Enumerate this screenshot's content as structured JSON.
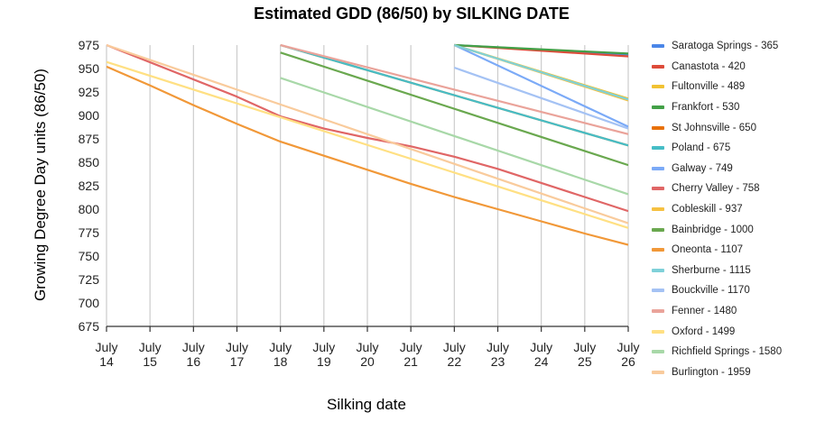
{
  "chart_data": {
    "type": "line",
    "title": "Estimated GDD (86/50) by SILKING DATE",
    "xlabel": "Silking date",
    "ylabel": "Growing Degree Day units (86/50)",
    "ylim": [
      675,
      975
    ],
    "yticks": [
      975,
      950,
      925,
      900,
      875,
      850,
      825,
      800,
      775,
      750,
      725,
      700,
      675
    ],
    "xlim": [
      14,
      26
    ],
    "x_tick_labels": [
      [
        "July",
        "14"
      ],
      [
        "July",
        "15"
      ],
      [
        "July",
        "16"
      ],
      [
        "July",
        "17"
      ],
      [
        "July",
        "18"
      ],
      [
        "July",
        "19"
      ],
      [
        "July",
        "20"
      ],
      [
        "July",
        "21"
      ],
      [
        "July",
        "22"
      ],
      [
        "July",
        "23"
      ],
      [
        "July",
        "24"
      ],
      [
        "July",
        "25"
      ],
      [
        "July",
        "26"
      ]
    ],
    "legend_position": "right",
    "series": [
      {
        "name": "Saratoga Springs - 365",
        "color": "#4a86e8",
        "points": [
          [
            22,
            975
          ],
          [
            26,
            965
          ]
        ]
      },
      {
        "name": "Canastota - 420",
        "color": "#dd4b39",
        "points": [
          [
            22,
            975
          ],
          [
            26,
            963
          ]
        ]
      },
      {
        "name": "Fultonville - 489",
        "color": "#f1c232",
        "points": [
          [
            22,
            975
          ],
          [
            26,
            918
          ]
        ]
      },
      {
        "name": "Frankfort - 530",
        "color": "#43a047",
        "points": [
          [
            22,
            975
          ],
          [
            26,
            966
          ]
        ]
      },
      {
        "name": "St Johnsville - 650",
        "color": "#e8710a",
        "points": [
          [
            18,
            975
          ],
          [
            26,
            868
          ]
        ]
      },
      {
        "name": "Poland - 675",
        "color": "#46bdc6",
        "points": [
          [
            18,
            975
          ],
          [
            26,
            868
          ]
        ]
      },
      {
        "name": "Galway - 749",
        "color": "#7baaf7",
        "points": [
          [
            22,
            975
          ],
          [
            26,
            888
          ]
        ]
      },
      {
        "name": "Cherry Valley - 758",
        "color": "#e06666",
        "points": [
          [
            14,
            975
          ],
          [
            17,
            920
          ],
          [
            18,
            899
          ],
          [
            19,
            886
          ],
          [
            20,
            876
          ],
          [
            21,
            867
          ],
          [
            22,
            856
          ],
          [
            23,
            843
          ],
          [
            24,
            828
          ],
          [
            25,
            813
          ],
          [
            26,
            798
          ]
        ]
      },
      {
        "name": "Cobleskill - 937",
        "color": "#f6c142",
        "points": [
          [
            22,
            975
          ],
          [
            26,
            916
          ]
        ]
      },
      {
        "name": "Bainbridge - 1000",
        "color": "#6aa84f",
        "points": [
          [
            18,
            967
          ],
          [
            26,
            847
          ]
        ]
      },
      {
        "name": "Oneonta - 1107",
        "color": "#f19838",
        "points": [
          [
            14,
            952
          ],
          [
            15,
            932
          ],
          [
            16,
            911
          ],
          [
            17,
            891
          ],
          [
            18,
            872
          ],
          [
            19,
            857
          ],
          [
            20,
            842
          ],
          [
            21,
            827
          ],
          [
            22,
            813
          ],
          [
            23,
            800
          ],
          [
            24,
            787
          ],
          [
            25,
            774
          ],
          [
            26,
            762
          ]
        ]
      },
      {
        "name": "Sherburne - 1115",
        "color": "#7fd1d9",
        "points": [
          [
            22,
            975
          ],
          [
            26,
            917
          ]
        ]
      },
      {
        "name": "Bouckville - 1170",
        "color": "#a4c2f4",
        "points": [
          [
            22,
            951
          ],
          [
            26,
            886
          ]
        ]
      },
      {
        "name": "Fenner - 1480",
        "color": "#eaa39a",
        "points": [
          [
            18,
            975
          ],
          [
            26,
            880
          ]
        ]
      },
      {
        "name": "Oxford - 1499",
        "color": "#ffe083",
        "points": [
          [
            14,
            957
          ],
          [
            26,
            780
          ]
        ]
      },
      {
        "name": "Richfield Springs - 1580",
        "color": "#a8d8a8",
        "points": [
          [
            18,
            940
          ],
          [
            26,
            816
          ]
        ]
      },
      {
        "name": "Burlington - 1959",
        "color": "#f9cb9c",
        "points": [
          [
            14,
            975
          ],
          [
            26,
            785
          ]
        ]
      }
    ]
  }
}
